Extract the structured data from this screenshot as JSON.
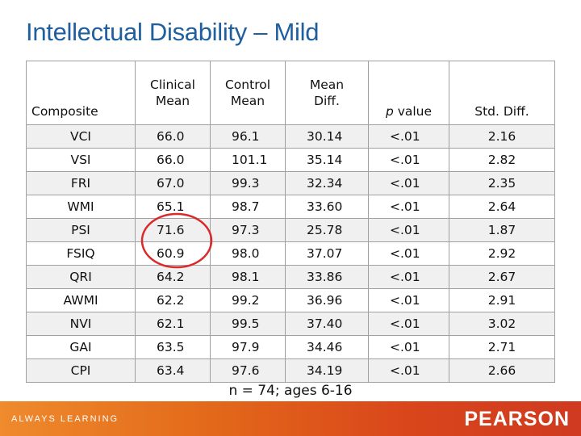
{
  "slide": {
    "title": "Intellectual Disability – Mild",
    "footnote": "n = 74; ages 6-16"
  },
  "table": {
    "headers": {
      "composite": "Composite",
      "clinical_1": "Clinical",
      "clinical_2": "Mean",
      "control_1": "Control",
      "control_2": "Mean",
      "diff_1": "Mean",
      "diff_2": "Diff.",
      "p_italic": "p",
      "p_rest": " value",
      "std": "Std. Diff."
    },
    "rows": [
      {
        "composite": "VCI",
        "clinical": "66.0",
        "control": "96.1",
        "diff": "30.14",
        "p": "<.01",
        "std": "2.16"
      },
      {
        "composite": "VSI",
        "clinical": "66.0",
        "control": "101.1",
        "diff": "35.14",
        "p": "<.01",
        "std": "2.82"
      },
      {
        "composite": "FRI",
        "clinical": "67.0",
        "control": "99.3",
        "diff": "32.34",
        "p": "<.01",
        "std": "2.35"
      },
      {
        "composite": "WMI",
        "clinical": "65.1",
        "control": "98.7",
        "diff": "33.60",
        "p": "<.01",
        "std": "2.64"
      },
      {
        "composite": "PSI",
        "clinical": "71.6",
        "control": "97.3",
        "diff": "25.78",
        "p": "<.01",
        "std": "1.87"
      },
      {
        "composite": "FSIQ",
        "clinical": "60.9",
        "control": "98.0",
        "diff": "37.07",
        "p": "<.01",
        "std": "2.92"
      },
      {
        "composite": "QRI",
        "clinical": "64.2",
        "control": "98.1",
        "diff": "33.86",
        "p": "<.01",
        "std": "2.67"
      },
      {
        "composite": "AWMI",
        "clinical": "62.2",
        "control": "99.2",
        "diff": "36.96",
        "p": "<.01",
        "std": "2.91"
      },
      {
        "composite": "NVI",
        "clinical": "62.1",
        "control": "99.5",
        "diff": "37.40",
        "p": "<.01",
        "std": "3.02"
      },
      {
        "composite": "GAI",
        "clinical": "63.5",
        "control": "97.9",
        "diff": "34.46",
        "p": "<.01",
        "std": "2.71"
      },
      {
        "composite": "CPI",
        "clinical": "63.4",
        "control": "97.6",
        "diff": "34.19",
        "p": "<.01",
        "std": "2.66"
      }
    ]
  },
  "footer": {
    "tagline": "ALWAYS LEARNING",
    "logo": "PEARSON"
  },
  "colors": {
    "title": "#1f5f9e",
    "circle": "#d92b2b",
    "footer_start": "#ef8a2d",
    "footer_end": "#cf3a20"
  }
}
